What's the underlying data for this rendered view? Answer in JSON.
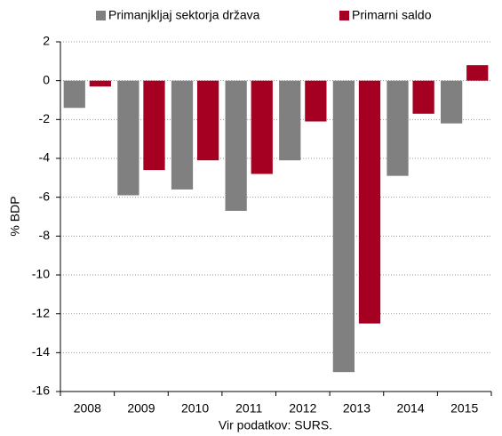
{
  "chart_data": {
    "type": "bar",
    "categories": [
      "2008",
      "2009",
      "2010",
      "2011",
      "2012",
      "2013",
      "2014",
      "2015"
    ],
    "series": [
      {
        "name": "Primanjkljaj sektorja država",
        "color": "#808080",
        "values": [
          -1.4,
          -5.9,
          -5.6,
          -6.7,
          -4.1,
          -15.0,
          -4.9,
          -2.2
        ]
      },
      {
        "name": "Primarni saldo",
        "color": "#a50021",
        "values": [
          -0.3,
          -4.6,
          -4.1,
          -4.8,
          -2.1,
          -12.5,
          -1.7,
          0.8
        ]
      }
    ],
    "ylabel": "% BDP",
    "xlabel": "Vir podatkov: SURS.",
    "ylim": [
      -16,
      2
    ],
    "yticks": [
      -16,
      -14,
      -12,
      -10,
      -8,
      -6,
      -4,
      -2,
      0,
      2
    ],
    "grid": true
  }
}
